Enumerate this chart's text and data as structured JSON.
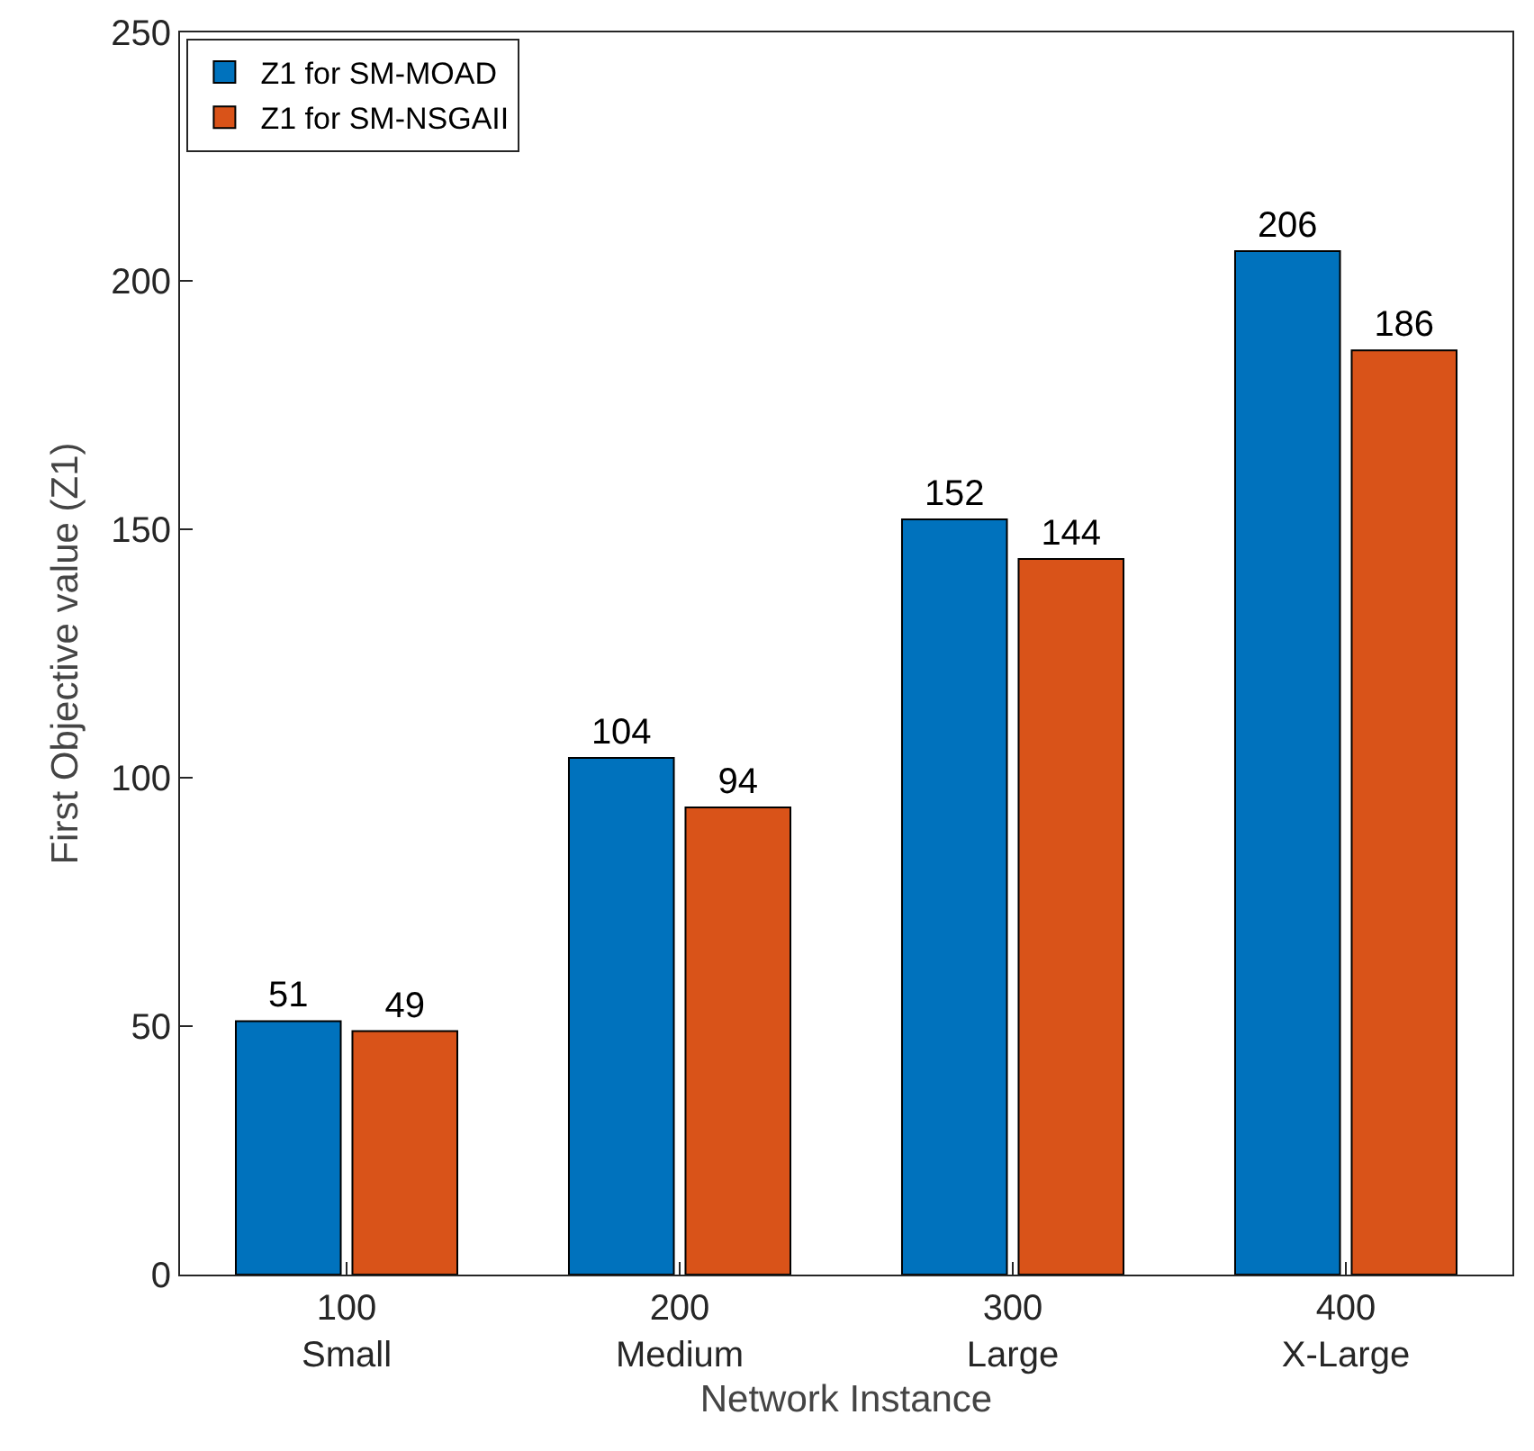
{
  "chart_data": {
    "type": "bar",
    "xlabel": "Network Instance",
    "ylabel": "First Objective value (Z1)",
    "categories": [
      "100\nSmall",
      "200\nMedium",
      "300\nLarge",
      "400\nX-Large"
    ],
    "series": [
      {
        "name": "Z1 for SM-MOAD",
        "color": "#0072bd",
        "values": [
          51,
          104,
          152,
          206
        ]
      },
      {
        "name": "Z1 for SM-NSGAII",
        "color": "#d95319",
        "values": [
          49,
          94,
          144,
          186
        ]
      }
    ],
    "ylim": [
      0,
      250
    ],
    "yticks": [
      0,
      50,
      100,
      150,
      200,
      250
    ],
    "grid": false,
    "legend": "top left",
    "data_labels": true
  }
}
